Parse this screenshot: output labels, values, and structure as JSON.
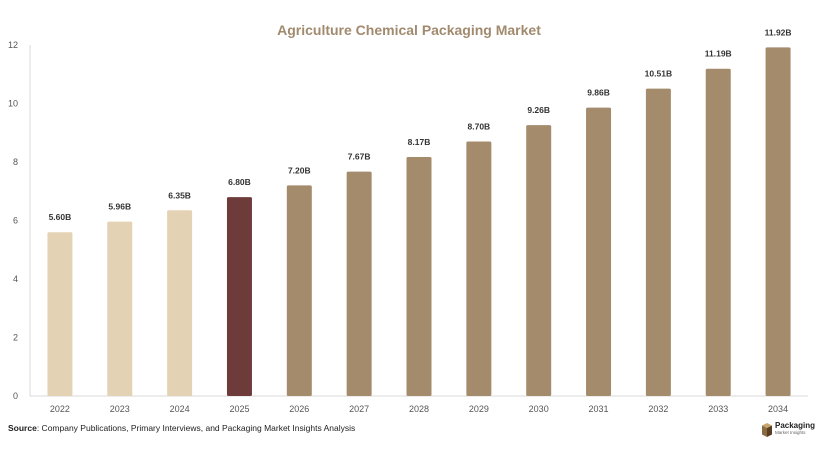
{
  "chart_data": {
    "type": "bar",
    "title": "Agriculture Chemical Packaging Market",
    "categories": [
      "2022",
      "2023",
      "2024",
      "2025",
      "2026",
      "2027",
      "2028",
      "2029",
      "2030",
      "2031",
      "2032",
      "2033",
      "2034"
    ],
    "values": [
      5.6,
      5.96,
      6.35,
      6.8,
      7.2,
      7.67,
      8.17,
      8.7,
      9.26,
      9.86,
      10.51,
      11.19,
      11.92
    ],
    "data_labels": [
      "5.60B",
      "5.96B",
      "6.35B",
      "6.80B",
      "7.20B",
      "7.67B",
      "8.17B",
      "8.70B",
      "9.26B",
      "9.86B",
      "10.51B",
      "11.19B",
      "11.92B"
    ],
    "bar_colors": [
      "#e3d3b4",
      "#e3d3b4",
      "#e3d3b4",
      "#6e3b3b",
      "#a48b6c",
      "#a48b6c",
      "#a48b6c",
      "#a48b6c",
      "#a48b6c",
      "#a48b6c",
      "#a48b6c",
      "#a48b6c",
      "#a48b6c"
    ],
    "ylim": [
      0,
      12
    ],
    "yticks": [
      0,
      2,
      4,
      6,
      8,
      10,
      12
    ],
    "xlabel": "",
    "ylabel": "",
    "grid": false,
    "legend": "none"
  },
  "source": {
    "label": "Source",
    "text": ": Company Publications, Primary Interviews, and Packaging Market Insights Analysis"
  },
  "logo": {
    "name": "Packaging",
    "tagline": "Market Insights",
    "icon": "box-icon"
  },
  "colors": {
    "title": "#a18a6e",
    "historical": "#e3d3b4",
    "base_year": "#6e3b3b",
    "forecast": "#a48b6c"
  }
}
